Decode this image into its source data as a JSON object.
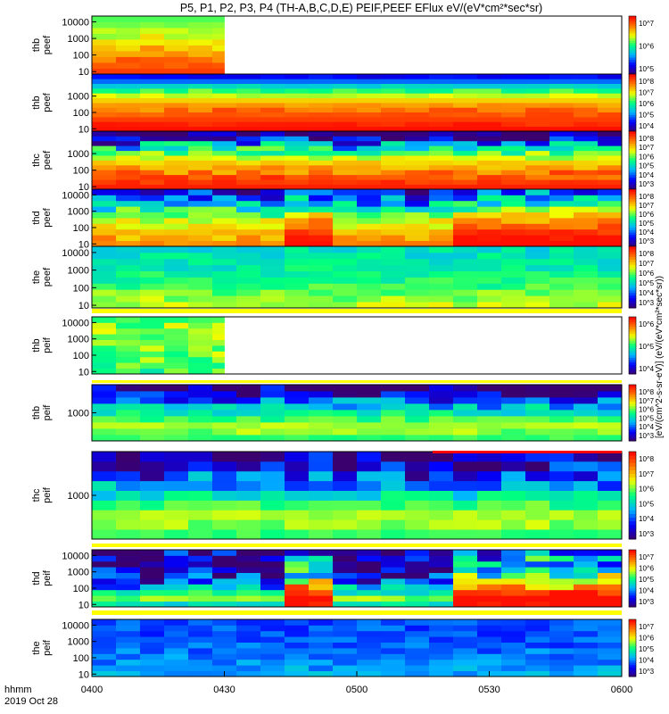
{
  "title": "P5, P1, P2, P3, P4 (TH-A,B,C,D,E) PEIF,PEEF EFlux eV/(eV*cm²*sec*sr)",
  "time_axis": {
    "ticks": [
      "0400",
      "0430",
      "0500",
      "0530",
      "0600"
    ],
    "label_top": "hhmm",
    "label_bottom": "2019 Oct 28",
    "range": [
      "0400",
      "0600"
    ]
  },
  "colorbar_units": "[eV/(cm^2-s-sr-eV)] (eV/(eV*cm²*sec*sr))",
  "colors": {
    "scale": [
      "#3a006e",
      "#0000ff",
      "#00b4ff",
      "#00ff80",
      "#f0ff00",
      "#ff7800",
      "#ff0000"
    ],
    "flag_yellow": "#ffff00",
    "flag_red": "#ff0000"
  },
  "chart_data": {
    "type": "heatmap",
    "scale": "log",
    "panels": [
      {
        "probe": "thb",
        "species": "peef",
        "ylabel": [
          "thb",
          "peef"
        ],
        "yticks": [
          "10",
          "100",
          "1000",
          "10000"
        ],
        "coverage": [
          0.0,
          0.25
        ],
        "cb_ticks": [
          "10^7",
          "10^6",
          "10^5"
        ],
        "profile": [
          9.6,
          9.2,
          8.8,
          8.4,
          8.0,
          7.6,
          7.2,
          6.8,
          6.5,
          6.2
        ],
        "grain": [
          0,
          0.1,
          0.2,
          0.1,
          0.2,
          0.1,
          0.2,
          0.15,
          0.05,
          0
        ]
      },
      {
        "probe": "thb",
        "species": "peef",
        "ylabel": [
          "thb",
          "peef"
        ],
        "yticks": [
          "10",
          "100",
          "1000"
        ],
        "coverage": [
          0.0,
          1.0
        ],
        "cb_ticks": [
          "10^8",
          "10^7",
          "10^6",
          "10^5",
          "10^4"
        ],
        "profile": [
          10.2,
          9.9,
          9.6,
          9.3,
          8.9,
          8.4,
          7.8,
          7.0,
          6.0,
          4.8,
          3.5,
          2.5
        ],
        "grain": [
          0,
          0.1,
          0,
          0.1,
          0.2,
          0.1,
          0,
          0.1,
          0.2,
          0.1,
          0,
          0.1
        ]
      },
      {
        "probe": "thc",
        "species": "peef",
        "ylabel": [
          "thc",
          "peef"
        ],
        "yticks": [
          "10",
          "100",
          "1000"
        ],
        "coverage": [
          0.0,
          1.0
        ],
        "cb_ticks": [
          "10^8",
          "10^7",
          "10^6",
          "10^5",
          "10^4",
          "10^3"
        ],
        "profile": [
          10.0,
          9.7,
          9.3,
          8.9,
          8.4,
          7.8,
          7.0,
          6.0,
          4.8,
          3.5,
          2.2,
          1.0
        ],
        "grain": [
          0,
          0.1,
          0.2,
          0.3,
          0.2,
          0.1,
          0.2,
          0.4,
          0.6,
          0.8,
          0.6,
          0.5
        ]
      },
      {
        "probe": "thd",
        "species": "peef",
        "ylabel": [
          "thd",
          "peef"
        ],
        "yticks": [
          "10",
          "100",
          "1000",
          "10000"
        ],
        "coverage": [
          0.0,
          1.0
        ],
        "cb_ticks": [
          "10^8",
          "10^7",
          "10^6",
          "10^5",
          "10^4",
          "10^3"
        ],
        "profile": [
          8.6,
          8.3,
          8.0,
          7.5,
          7.0,
          6.2,
          5.3,
          4.2,
          3.2,
          2.5
        ],
        "grain": [
          0.1,
          0.2,
          0.1,
          0.2,
          0.3,
          0.3,
          0.5,
          0.6,
          0.6,
          0.5
        ],
        "bursts": [
          [
            0.375,
            0.46
          ],
          [
            0.67,
            1.0
          ]
        ],
        "burst_boost": 2.0
      },
      {
        "probe": "the",
        "species": "peef",
        "ylabel": [
          "the",
          "peef"
        ],
        "yticks": [
          "10",
          "100",
          "1000",
          "10000"
        ],
        "coverage": [
          0.0,
          1.0
        ],
        "cb_ticks": [
          "10^8",
          "10^7",
          "10^6",
          "10^5",
          "10^4",
          "10^3"
        ],
        "profile": [
          6.9,
          6.6,
          6.3,
          6.0,
          5.7,
          5.5,
          5.3,
          5.2,
          5.1,
          5.0
        ],
        "grain": [
          0.2,
          0.2,
          0.2,
          0.2,
          0.2,
          0.2,
          0.2,
          0.2,
          0.2,
          0.2
        ]
      },
      {
        "probe": "thb",
        "species": "peif",
        "ylabel": [
          "thb",
          "peif"
        ],
        "yticks": [
          "10",
          "100",
          "1000",
          "10000"
        ],
        "coverage": [
          0.0,
          0.25
        ],
        "cb_ticks": [
          "10^6",
          "10^5",
          "10^4"
        ],
        "profile": [
          6.0,
          6.0,
          6.2,
          6.4,
          6.6,
          6.8,
          6.8,
          6.8,
          6.6,
          6.4
        ],
        "grain": [
          0.3,
          0.3,
          0.3,
          0.3,
          0.3,
          0.3,
          0.3,
          0.3,
          0.3,
          0.3
        ]
      },
      {
        "probe": "thb",
        "species": "peif",
        "ylabel": [
          "thb",
          "peif"
        ],
        "yticks": [
          "1000"
        ],
        "coverage": [
          0.0,
          1.0
        ],
        "cb_ticks": [
          "10^8",
          "10^7",
          "10^6",
          "10^5",
          "10^4",
          "10^3"
        ],
        "profile": [
          6.0,
          6.5,
          6.8,
          6.0,
          5.2,
          4.3,
          3.3,
          2.2,
          1.0
        ],
        "grain": [
          0.1,
          0.2,
          0.1,
          0.2,
          0.3,
          0.4,
          0.5,
          0.6,
          0.7
        ]
      },
      {
        "probe": "thc",
        "species": "peif",
        "ylabel": [
          "thc",
          "peif"
        ],
        "yticks": [
          "1000"
        ],
        "coverage": [
          0.0,
          1.0
        ],
        "cb_ticks": [
          "10^8",
          "10^7",
          "10^6",
          "10^5",
          "10^4",
          "10^3"
        ],
        "profile": [
          6.0,
          6.6,
          6.8,
          6.0,
          5.0,
          4.0,
          3.0,
          2.0,
          1.0
        ],
        "grain": [
          0.1,
          0.2,
          0.1,
          0.2,
          0.3,
          0.4,
          0.6,
          0.7,
          0.8
        ]
      },
      {
        "probe": "thd",
        "species": "peif",
        "ylabel": [
          "thd",
          "peif"
        ],
        "yticks": [
          "10",
          "100",
          "1000",
          "10000"
        ],
        "coverage": [
          0.0,
          1.0
        ],
        "cb_ticks": [
          "10^7",
          "10^6",
          "10^5",
          "10^4",
          "10^3"
        ],
        "profile": [
          5.0,
          6.5,
          5.5,
          4.0,
          3.0,
          2.0,
          1.5,
          1.5,
          1.5,
          1.5
        ],
        "grain": [
          0.2,
          0.2,
          0.3,
          0.5,
          0.6,
          0.8,
          0.8,
          0.8,
          0.8,
          0.8
        ],
        "bursts": [
          [
            0.375,
            0.46
          ],
          [
            0.67,
            1.0
          ]
        ],
        "burst_boost": 5.3
      },
      {
        "probe": "the",
        "species": "peif",
        "ylabel": [
          "the",
          "peif"
        ],
        "yticks": [
          "10",
          "100",
          "1000",
          "10000"
        ],
        "coverage": [
          0.0,
          1.0
        ],
        "cb_ticks": [
          "10^7",
          "10^6",
          "10^5",
          "10^4",
          "10^3"
        ],
        "profile": [
          4.2,
          4.0,
          3.8,
          3.6,
          3.5,
          3.4,
          3.3,
          3.3,
          3.3,
          3.3
        ],
        "grain": [
          0.2,
          0.2,
          0.2,
          0.2,
          0.2,
          0.2,
          0.2,
          0.2,
          0.2,
          0.2
        ]
      }
    ]
  }
}
